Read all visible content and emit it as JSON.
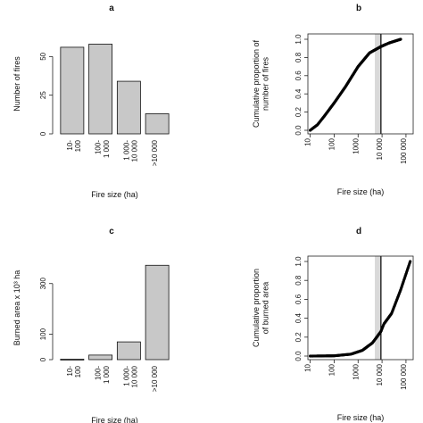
{
  "chart_data": [
    {
      "panel": "a",
      "type": "bar",
      "categories": [
        "10-\n100",
        "100-\n1 000",
        "1 000-\n10 000",
        ">10 000"
      ],
      "values": [
        56,
        58,
        34,
        13
      ],
      "xlabel": "Fire size (ha)",
      "ylabel": "Number of fires",
      "ylim": [
        0,
        60
      ],
      "yticks": [
        "0",
        "25",
        "50"
      ]
    },
    {
      "panel": "b",
      "type": "scatter",
      "xscale": "log",
      "xlim": [
        8,
        200000
      ],
      "ylim": [
        0,
        1
      ],
      "xticks": [
        "10",
        "100",
        "1000",
        "10 000",
        "100 000"
      ],
      "yticks": [
        "0.0",
        "0.2",
        "0.4",
        "0.6",
        "0.8",
        "1.0"
      ],
      "xlabel": "Fire size (ha)",
      "ylabel": "Cumulative proportion of\nnumber of fires",
      "vline": 9000,
      "shade_x": [
        5000,
        9000
      ],
      "points": {
        "n": 161,
        "curve": [
          [
            10,
            0.0
          ],
          [
            20,
            0.06
          ],
          [
            40,
            0.16
          ],
          [
            100,
            0.3
          ],
          [
            300,
            0.48
          ],
          [
            1000,
            0.7
          ],
          [
            3000,
            0.85
          ],
          [
            9000,
            0.92
          ],
          [
            20000,
            0.96
          ],
          [
            60000,
            1.0
          ]
        ]
      }
    },
    {
      "panel": "c",
      "type": "bar",
      "categories": [
        "10-\n100",
        "100-\n1 000",
        "1 000-\n10 000",
        ">10 000"
      ],
      "values": [
        2,
        18,
        70,
        372
      ],
      "xlabel": "Fire size (ha)",
      "ylabel": "Burned area x 10³ ha",
      "ylim": [
        0,
        380
      ],
      "yticks": [
        "0",
        "100",
        "300"
      ]
    },
    {
      "panel": "d",
      "type": "scatter",
      "xscale": "log",
      "xlim": [
        8,
        200000
      ],
      "ylim": [
        0,
        1
      ],
      "xticks": [
        "10",
        "100",
        "1000",
        "10 000",
        "100 000"
      ],
      "yticks": [
        "0.0",
        "0.2",
        "0.4",
        "0.6",
        "0.8",
        "1.0"
      ],
      "xlabel": "Fire size (ha)",
      "ylabel": "Cumulative proportion\nof burned area",
      "vline": 9000,
      "shade_x": [
        5000,
        9000
      ],
      "points": {
        "n": 161,
        "curve": [
          [
            10,
            0.0
          ],
          [
            100,
            0.003
          ],
          [
            500,
            0.02
          ],
          [
            1500,
            0.06
          ],
          [
            4000,
            0.14
          ],
          [
            6000,
            0.2
          ],
          [
            9000,
            0.26
          ],
          [
            12000,
            0.34
          ],
          [
            25000,
            0.45
          ],
          [
            60000,
            0.7
          ],
          [
            150000,
            1.0
          ]
        ]
      }
    }
  ]
}
